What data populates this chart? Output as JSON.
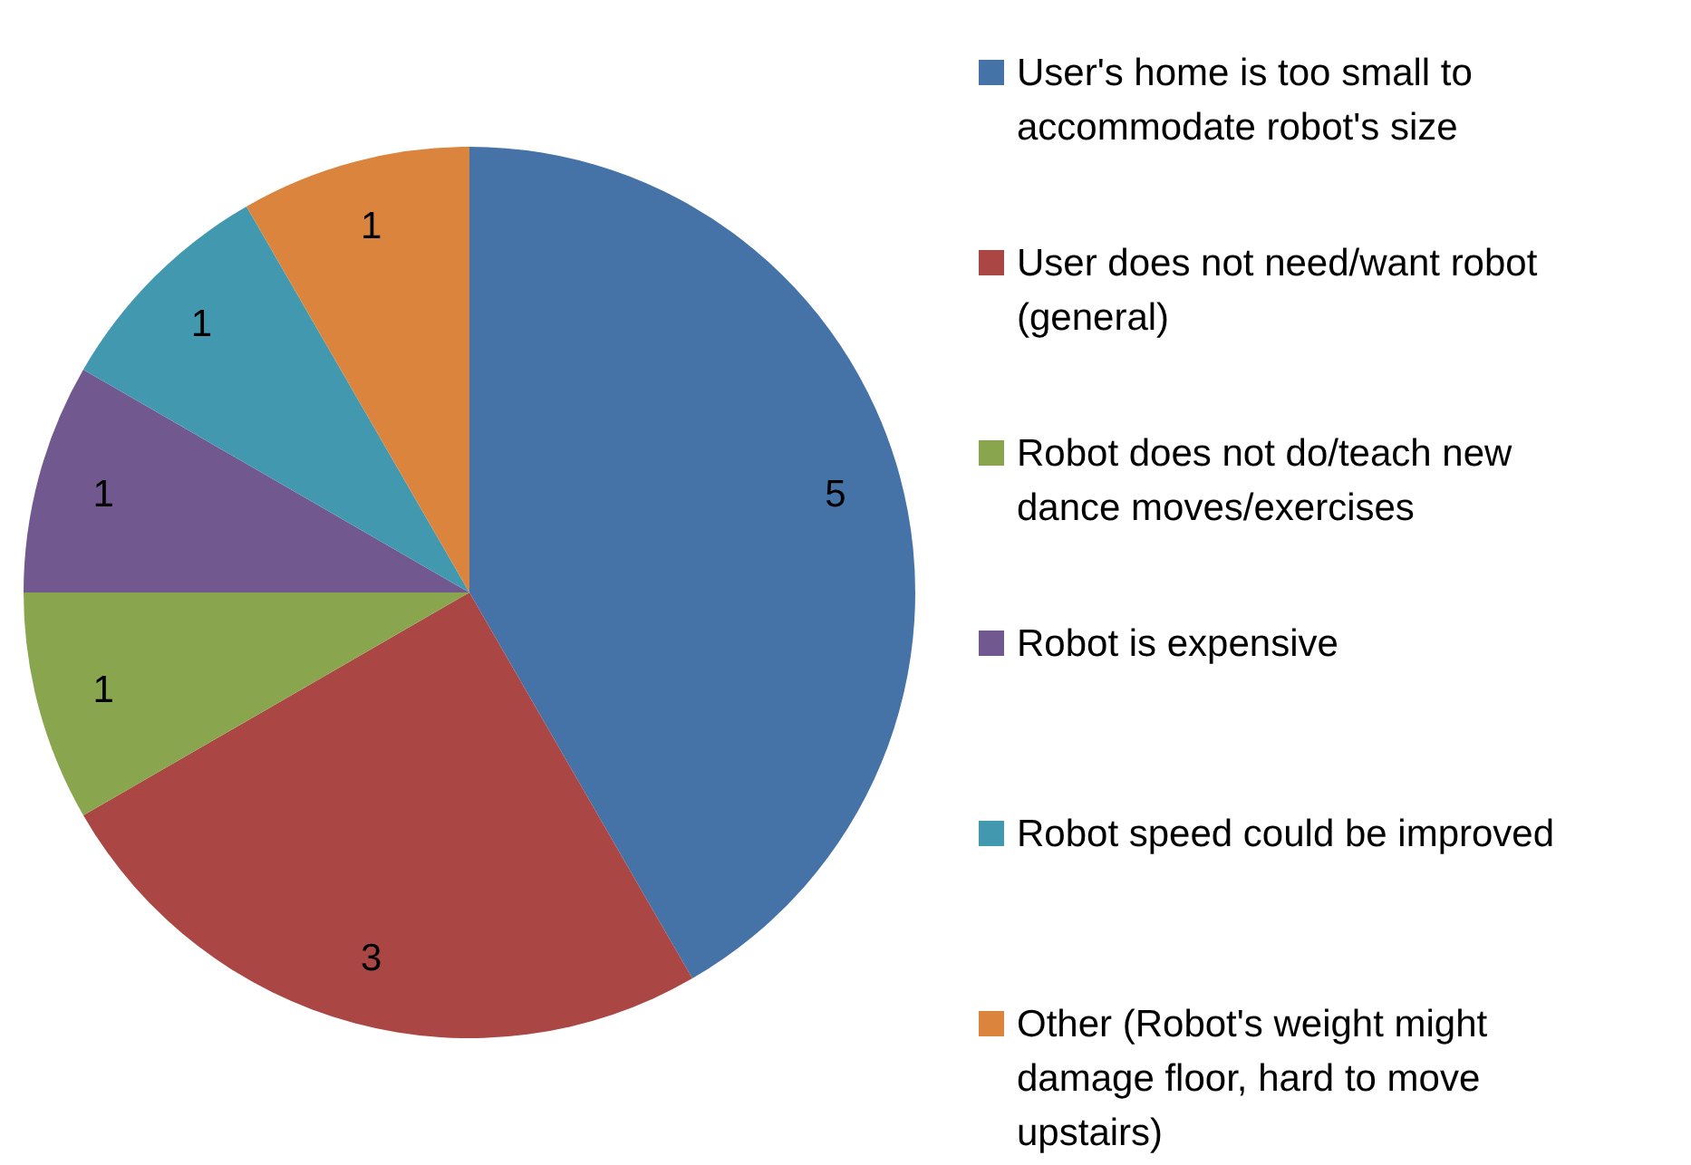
{
  "chart_data": {
    "type": "pie",
    "categories": [
      "User's home is too small to accommodate robot's size",
      "User does not need/want robot (general)",
      "Robot does not do/teach new dance moves/exercises",
      "Robot is expensive",
      "Robot speed could be improved",
      "Other (Robot's weight might damage floor, hard to move upstairs)"
    ],
    "values": [
      5,
      3,
      1,
      1,
      1,
      1
    ],
    "colors": [
      "#4572a7",
      "#aa4643",
      "#89a54e",
      "#71588f",
      "#4198af",
      "#db843d"
    ],
    "data_labels": true,
    "legend": "right"
  }
}
